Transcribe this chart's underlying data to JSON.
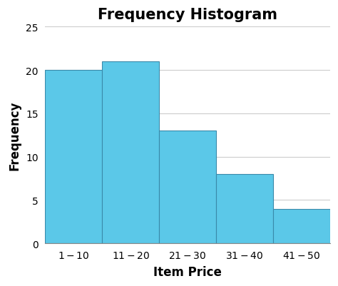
{
  "title": "Frequency Histogram",
  "xlabel": "Item Price",
  "ylabel": "Frequency",
  "categories": [
    "$1 - $10",
    "$11 - $20",
    "$21 - $30",
    "$31 - $40",
    "$41 - $50"
  ],
  "values": [
    20,
    21,
    13,
    8,
    4
  ],
  "bar_color": "#5BC8E8",
  "bar_edge_color": "#3A8AAA",
  "ylim": [
    0,
    25
  ],
  "yticks": [
    0,
    5,
    10,
    15,
    20,
    25
  ],
  "title_fontsize": 15,
  "title_fontweight": "bold",
  "xlabel_fontsize": 12,
  "xlabel_fontweight": "bold",
  "ylabel_fontsize": 12,
  "ylabel_fontweight": "bold",
  "tick_fontsize": 10,
  "grid_color": "#cccccc",
  "background_color": "#ffffff"
}
